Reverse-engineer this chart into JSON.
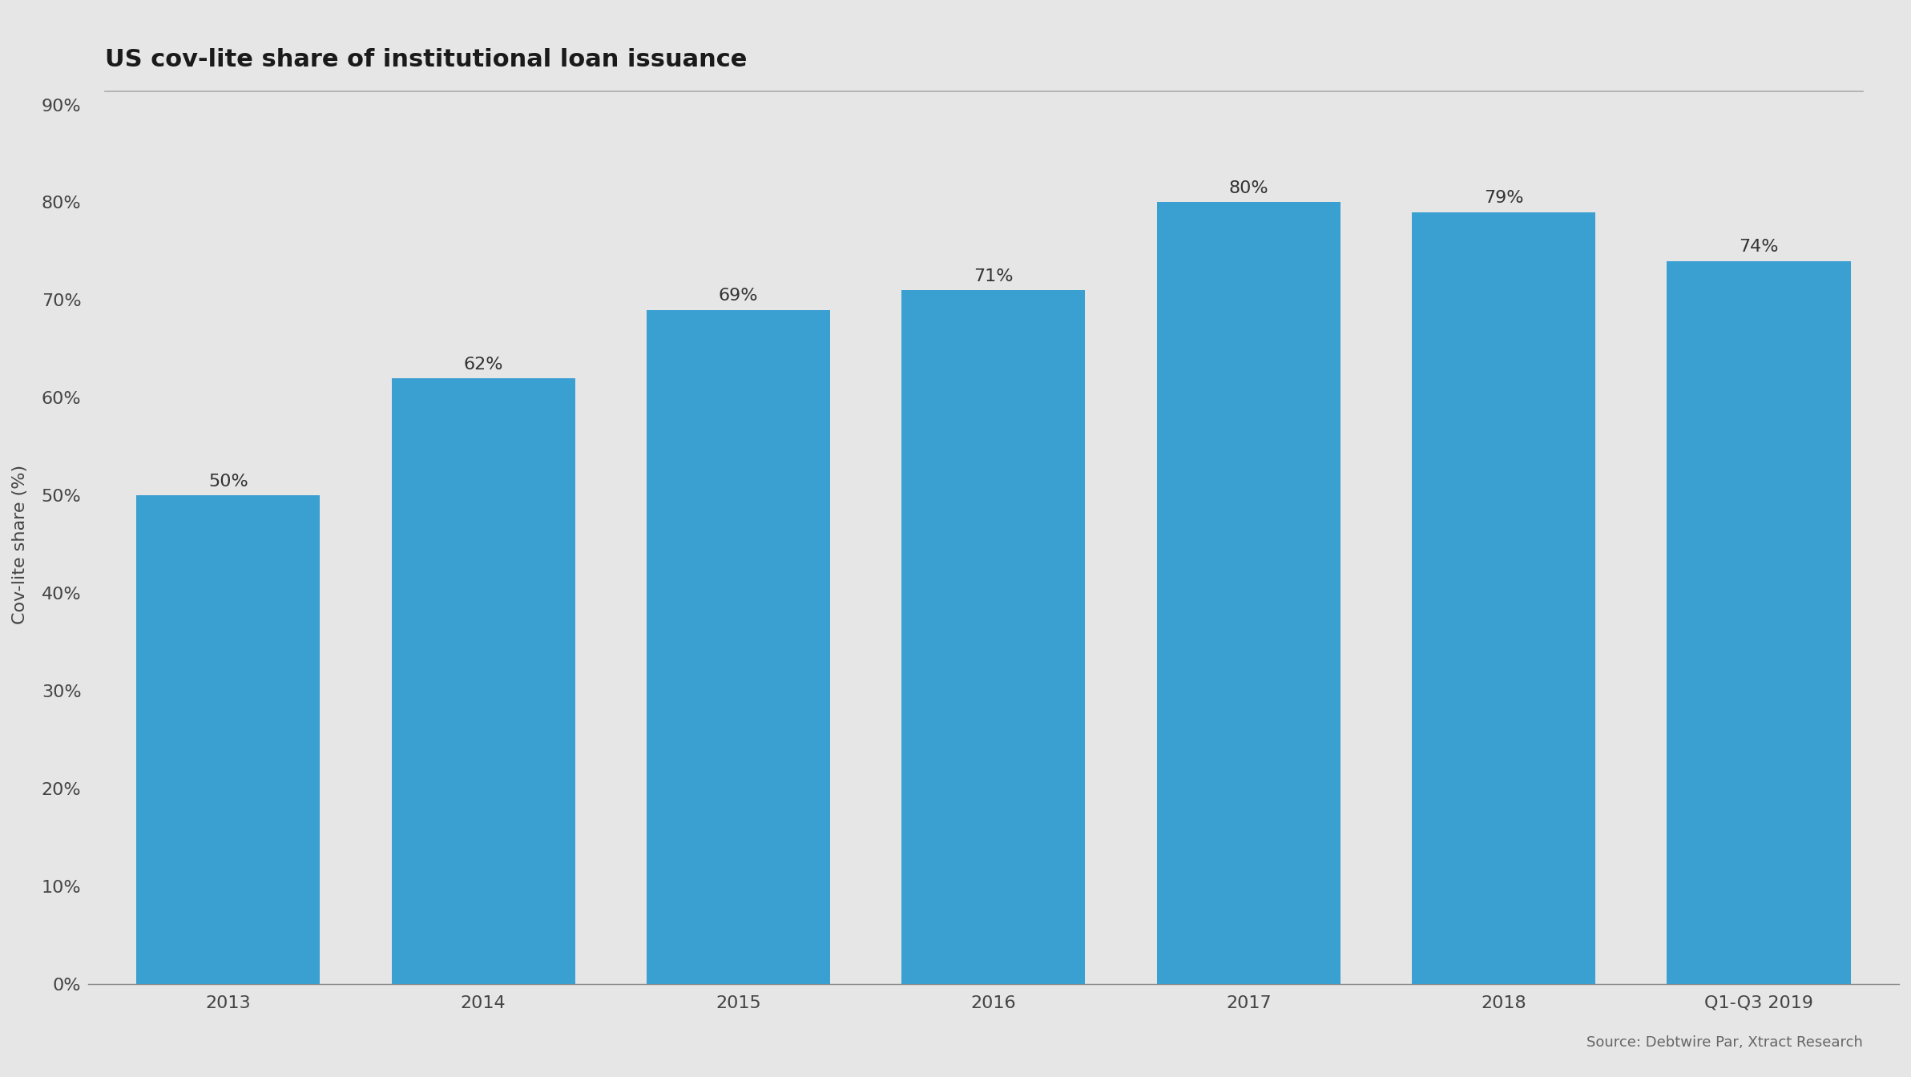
{
  "title": "US cov-lite share of institutional loan issuance",
  "source_text": "Source: Debtwire Par, Xtract Research",
  "categories": [
    "2013",
    "2014",
    "2015",
    "2016",
    "2017",
    "2018",
    "Q1-Q3 2019"
  ],
  "values": [
    50,
    62,
    69,
    71,
    80,
    79,
    74
  ],
  "bar_color": "#3a9fd1",
  "ylabel": "Cov-lite share (%)",
  "ylim": [
    0,
    90
  ],
  "yticks": [
    0,
    10,
    20,
    30,
    40,
    50,
    60,
    70,
    80,
    90
  ],
  "ytick_labels": [
    "0%",
    "10%",
    "20%",
    "30%",
    "40%",
    "50%",
    "60%",
    "70%",
    "80%",
    "90%"
  ],
  "background_color": "#e6e6e6",
  "title_fontsize": 22,
  "label_fontsize": 16,
  "tick_fontsize": 16,
  "annotation_fontsize": 16,
  "source_fontsize": 13,
  "bar_width": 0.72
}
